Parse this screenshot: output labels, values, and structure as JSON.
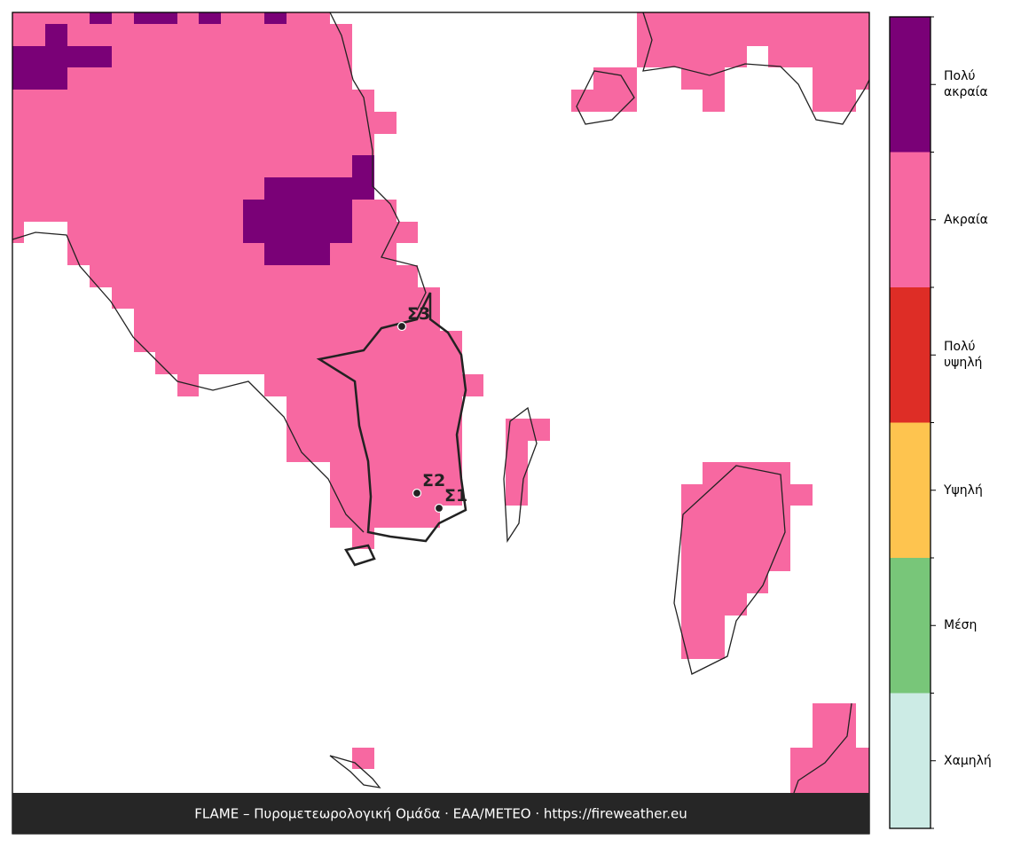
{
  "legend": {
    "levels": [
      {
        "label": "Πολύ ακραία",
        "color": "#7a0177"
      },
      {
        "label": "Ακραία",
        "color": "#f768a1"
      },
      {
        "label": "Πολύ υψηλή",
        "color": "#de2d26"
      },
      {
        "label": "Υψηλή",
        "color": "#fec44f"
      },
      {
        "label": "Μέση",
        "color": "#78c679"
      },
      {
        "label": "Χαμηλή",
        "color": "#ccebe5"
      }
    ]
  },
  "stations": [
    {
      "label": "Σ3"
    },
    {
      "label": "Σ2"
    },
    {
      "label": "Σ1"
    }
  ],
  "footer": "FLAME – Πυρομετεωρολογική Ομάδα · ΕΑΑ/METEO · https://fireweather.eu"
}
